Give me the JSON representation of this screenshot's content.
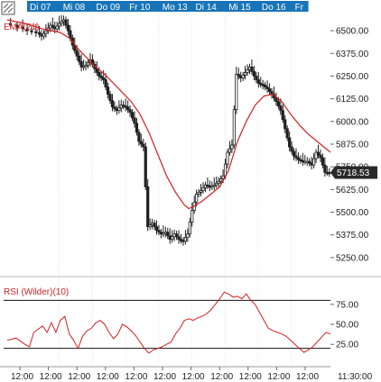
{
  "colors": {
    "candle": "#1f1f1f",
    "ema": "#d42020",
    "rsi": "#d42020",
    "day_tab": "#1874b8",
    "price_badge": "#2a2a2a",
    "rsi_ref": "#111111",
    "vsep": "#c8c8c8"
  },
  "icons": {
    "corner": "hatch-icon"
  },
  "chart_data": [
    {
      "type": "candlestick",
      "instrument_label": "",
      "indicator_label": "EMA(21)",
      "ylim": [
        5180,
        6560
      ],
      "yticks": [
        "6500.00",
        "6375.00",
        "6250.00",
        "6125.00",
        "6000.00",
        "5875.00",
        "5750.00",
        "5625.00",
        "5500.00",
        "5375.00",
        "5250.00"
      ],
      "ytick_values": [
        6500,
        6375,
        6250,
        6125,
        6000,
        5875,
        5750,
        5625,
        5500,
        5375,
        5250
      ],
      "last_price": "5718.53",
      "last_price_value": 5718.53,
      "days": [
        "Di 07",
        "Mi 08",
        "Do 09",
        "Fr 10",
        "Mo 13",
        "Di 14",
        "Mi 15",
        "Do 16",
        "Fr"
      ],
      "time_ticks": [
        "12:00",
        "12:00",
        "12:00",
        "12:00",
        "12:00",
        "12:00",
        "12:00",
        "12:00",
        "12:00",
        "12:00",
        "12:00",
        "11:30:00"
      ],
      "price_path": [
        [
          0,
          6540
        ],
        [
          3,
          6520
        ],
        [
          5,
          6500
        ],
        [
          7,
          6490
        ],
        [
          8,
          6470
        ],
        [
          9,
          6500
        ],
        [
          10,
          6530
        ],
        [
          11,
          6510
        ],
        [
          12,
          6540
        ],
        [
          13,
          6560
        ],
        [
          14,
          6500
        ],
        [
          15,
          6420
        ],
        [
          16,
          6360
        ],
        [
          17,
          6300
        ],
        [
          18,
          6310
        ],
        [
          19,
          6340
        ],
        [
          20,
          6290
        ],
        [
          21,
          6250
        ],
        [
          22,
          6230
        ],
        [
          23,
          6150
        ],
        [
          24,
          6080
        ],
        [
          25,
          6060
        ],
        [
          26,
          6090
        ],
        [
          27,
          6080
        ],
        [
          28,
          6050
        ],
        [
          29,
          5990
        ],
        [
          30,
          5890
        ],
        [
          31,
          5860
        ],
        [
          32,
          5420
        ],
        [
          33,
          5440
        ],
        [
          34,
          5400
        ],
        [
          35,
          5380
        ],
        [
          36,
          5390
        ],
        [
          37,
          5350
        ],
        [
          38,
          5380
        ],
        [
          39,
          5350
        ],
        [
          40,
          5340
        ],
        [
          41,
          5380
        ],
        [
          42,
          5510
        ],
        [
          43,
          5600
        ],
        [
          44,
          5620
        ],
        [
          45,
          5650
        ],
        [
          46,
          5640
        ],
        [
          47,
          5650
        ],
        [
          48,
          5670
        ],
        [
          49,
          5700
        ],
        [
          50,
          5830
        ],
        [
          51,
          5870
        ],
        [
          52,
          6260
        ],
        [
          53,
          6240
        ],
        [
          54,
          6270
        ],
        [
          55,
          6300
        ],
        [
          56,
          6250
        ],
        [
          57,
          6210
        ],
        [
          58,
          6200
        ],
        [
          59,
          6180
        ],
        [
          60,
          6150
        ],
        [
          61,
          6110
        ],
        [
          62,
          6060
        ],
        [
          63,
          5960
        ],
        [
          64,
          5860
        ],
        [
          65,
          5810
        ],
        [
          66,
          5790
        ],
        [
          67,
          5780
        ],
        [
          68,
          5780
        ],
        [
          69,
          5760
        ],
        [
          70,
          5830
        ],
        [
          71,
          5800
        ],
        [
          72,
          5720
        ],
        [
          73,
          5718.53
        ]
      ],
      "ema": [
        [
          0,
          6560
        ],
        [
          4,
          6540
        ],
        [
          8,
          6510
        ],
        [
          12,
          6490
        ],
        [
          14,
          6460
        ],
        [
          16,
          6400
        ],
        [
          18,
          6350
        ],
        [
          20,
          6300
        ],
        [
          22,
          6260
        ],
        [
          24,
          6210
        ],
        [
          26,
          6160
        ],
        [
          28,
          6110
        ],
        [
          30,
          6040
        ],
        [
          32,
          5940
        ],
        [
          34,
          5820
        ],
        [
          36,
          5700
        ],
        [
          38,
          5610
        ],
        [
          40,
          5540
        ],
        [
          41,
          5520
        ],
        [
          42,
          5530
        ],
        [
          44,
          5560
        ],
        [
          46,
          5600
        ],
        [
          48,
          5640
        ],
        [
          50,
          5730
        ],
        [
          52,
          5890
        ],
        [
          54,
          6000
        ],
        [
          56,
          6090
        ],
        [
          58,
          6140
        ],
        [
          60,
          6150
        ],
        [
          62,
          6110
        ],
        [
          64,
          6040
        ],
        [
          66,
          5980
        ],
        [
          68,
          5930
        ],
        [
          70,
          5890
        ],
        [
          72,
          5850
        ],
        [
          73,
          5830
        ]
      ],
      "xlim": [
        0,
        73
      ]
    },
    {
      "type": "line",
      "indicator_label": "RSI (Wilder)(10)",
      "ylim": [
        5,
        95
      ],
      "yticks": [
        "75.00",
        "50.00",
        "25.00"
      ],
      "ytick_values": [
        75,
        50,
        25
      ],
      "reference_lines": [
        80,
        20
      ],
      "values": [
        [
          0,
          30
        ],
        [
          2,
          33
        ],
        [
          4,
          25
        ],
        [
          5,
          22
        ],
        [
          6,
          40
        ],
        [
          8,
          48
        ],
        [
          9,
          40
        ],
        [
          10,
          52
        ],
        [
          11,
          40
        ],
        [
          12,
          55
        ],
        [
          13,
          60
        ],
        [
          14,
          38
        ],
        [
          15,
          30
        ],
        [
          16,
          20
        ],
        [
          17,
          35
        ],
        [
          18,
          42
        ],
        [
          19,
          45
        ],
        [
          20,
          52
        ],
        [
          21,
          55
        ],
        [
          22,
          50
        ],
        [
          23,
          40
        ],
        [
          24,
          32
        ],
        [
          25,
          38
        ],
        [
          26,
          50
        ],
        [
          27,
          47
        ],
        [
          28,
          42
        ],
        [
          29,
          36
        ],
        [
          30,
          28
        ],
        [
          31,
          20
        ],
        [
          32,
          14
        ],
        [
          33,
          18
        ],
        [
          34,
          20
        ],
        [
          35,
          22
        ],
        [
          36,
          25
        ],
        [
          37,
          28
        ],
        [
          38,
          38
        ],
        [
          39,
          45
        ],
        [
          40,
          55
        ],
        [
          41,
          57
        ],
        [
          42,
          55
        ],
        [
          43,
          58
        ],
        [
          44,
          60
        ],
        [
          45,
          63
        ],
        [
          46,
          68
        ],
        [
          47,
          75
        ],
        [
          48,
          82
        ],
        [
          49,
          90
        ],
        [
          50,
          88
        ],
        [
          51,
          84
        ],
        [
          52,
          85
        ],
        [
          53,
          82
        ],
        [
          54,
          88
        ],
        [
          55,
          80
        ],
        [
          56,
          75
        ],
        [
          57,
          65
        ],
        [
          58,
          55
        ],
        [
          59,
          45
        ],
        [
          60,
          42
        ],
        [
          61,
          40
        ],
        [
          62,
          38
        ],
        [
          63,
          35
        ],
        [
          64,
          30
        ],
        [
          65,
          25
        ],
        [
          66,
          20
        ],
        [
          67,
          15
        ],
        [
          68,
          18
        ],
        [
          69,
          22
        ],
        [
          70,
          28
        ],
        [
          71,
          34
        ],
        [
          72,
          40
        ],
        [
          73,
          38
        ]
      ],
      "xlim": [
        0,
        73
      ]
    }
  ]
}
